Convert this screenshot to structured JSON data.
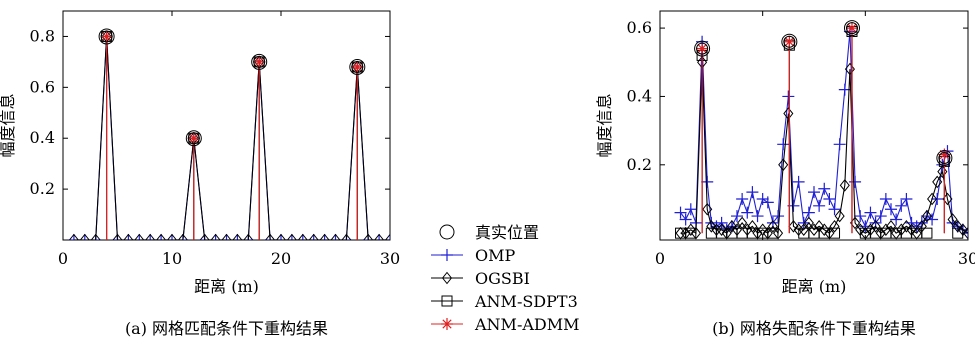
{
  "chart_data": [
    {
      "type": "line",
      "subplot": "a",
      "caption": "(a) 网格匹配条件下重构结果",
      "xlabel": "距离 (m)",
      "ylabel": "幅度信息",
      "xlim": [
        0,
        30
      ],
      "ylim": [
        0,
        0.9
      ],
      "xticks": [
        "0",
        "10",
        "20",
        "30"
      ],
      "yticks": [
        "0.2",
        "0.4",
        "0.6",
        "0.8"
      ],
      "grid": false,
      "true_positions": {
        "x": [
          4,
          12,
          18,
          27
        ],
        "y": [
          0.8,
          0.4,
          0.7,
          0.68
        ]
      },
      "series": [
        {
          "name": "OMP",
          "x": [
            1,
            2,
            3,
            4,
            5,
            6,
            7,
            8,
            9,
            10,
            11,
            12,
            13,
            14,
            15,
            16,
            17,
            18,
            19,
            20,
            21,
            22,
            23,
            24,
            25,
            26,
            27,
            28,
            29,
            30
          ],
          "values": [
            0,
            0,
            0,
            0.8,
            0,
            0,
            0,
            0,
            0,
            0,
            0,
            0.4,
            0,
            0,
            0,
            0,
            0,
            0.7,
            0,
            0,
            0,
            0,
            0,
            0,
            0,
            0,
            0.68,
            0,
            0,
            0
          ]
        },
        {
          "name": "OGSBI",
          "x": [
            1,
            2,
            3,
            4,
            5,
            6,
            7,
            8,
            9,
            10,
            11,
            12,
            13,
            14,
            15,
            16,
            17,
            18,
            19,
            20,
            21,
            22,
            23,
            24,
            25,
            26,
            27,
            28,
            29,
            30
          ],
          "values": [
            0,
            0,
            0,
            0.8,
            0,
            0,
            0,
            0,
            0,
            0,
            0,
            0.4,
            0,
            0,
            0,
            0,
            0,
            0.7,
            0,
            0,
            0,
            0,
            0,
            0,
            0,
            0,
            0.68,
            0,
            0,
            0
          ]
        },
        {
          "name": "ANM-SDPT3",
          "x": [
            4,
            12,
            18,
            27
          ],
          "values": [
            0.8,
            0.4,
            0.7,
            0.68
          ]
        },
        {
          "name": "ANM-ADMM",
          "x": [
            4,
            12,
            18,
            27
          ],
          "values": [
            0.8,
            0.4,
            0.7,
            0.68
          ]
        }
      ]
    },
    {
      "type": "line",
      "subplot": "b",
      "caption": "(b) 网格失配条件下重构结果",
      "xlabel": "距离 (m)",
      "ylabel": "幅度信息",
      "xlim": [
        0,
        30
      ],
      "ylim": [
        -0.02,
        0.65
      ],
      "xticks": [
        "0",
        "10",
        "20",
        "30"
      ],
      "yticks": [
        "0.2",
        "0.4",
        "0.6"
      ],
      "grid": false,
      "true_positions": {
        "x": [
          4.1,
          12.6,
          18.7,
          27.7
        ],
        "y": [
          0.54,
          0.56,
          0.6,
          0.22
        ]
      },
      "series": [
        {
          "name": "OMP",
          "x": [
            2,
            2.5,
            3,
            3.5,
            4.1,
            4.6,
            5,
            5.5,
            6,
            6.5,
            7,
            7.5,
            8,
            8.5,
            9,
            9.5,
            10,
            10.5,
            11,
            11.5,
            12,
            12.5,
            13,
            13.5,
            14,
            14.5,
            15,
            15.5,
            16,
            16.5,
            17,
            17.5,
            18,
            18.5,
            19,
            19.5,
            20,
            20.5,
            21,
            21.5,
            22,
            22.5,
            23,
            23.5,
            24,
            24.5,
            25,
            25.5,
            26,
            26.5,
            27,
            27.5,
            28,
            28.5,
            29,
            29.5,
            30
          ],
          "values": [
            0.06,
            0.04,
            0.07,
            0.03,
            0.56,
            0.15,
            0.03,
            0.02,
            0.03,
            0.01,
            0.02,
            0.05,
            0.1,
            0.06,
            0.12,
            0.05,
            0.1,
            0.09,
            0.03,
            0.05,
            0.26,
            0.4,
            0.08,
            0.15,
            0.03,
            0.06,
            0.12,
            0.08,
            0.13,
            0.1,
            0.07,
            0.26,
            0.42,
            0.59,
            0.15,
            0.05,
            0.02,
            0.06,
            0.03,
            0.05,
            0.1,
            0.07,
            0.04,
            0.08,
            0.1,
            0.03,
            0.02,
            0.03,
            0.05,
            0.04,
            0.1,
            0.2,
            0.24,
            0.03,
            0.02,
            0.01,
            0
          ]
        },
        {
          "name": "OGSBI",
          "x": [
            2,
            2.5,
            3,
            3.5,
            4.1,
            4.6,
            5,
            5.5,
            6,
            6.5,
            7,
            7.5,
            8,
            8.5,
            9,
            9.5,
            10,
            10.5,
            11,
            11.5,
            12,
            12.5,
            13,
            13.5,
            14,
            14.5,
            15,
            15.5,
            16,
            16.5,
            17,
            17.5,
            18,
            18.5,
            19,
            19.5,
            20,
            20.5,
            21,
            21.5,
            22,
            22.5,
            23,
            23.5,
            24,
            24.5,
            25,
            25.5,
            26,
            26.5,
            27,
            27.5,
            28,
            28.5,
            29,
            29.5,
            30
          ],
          "values": [
            0,
            0,
            0.01,
            0,
            0.5,
            0.07,
            0.02,
            0.01,
            0.01,
            0,
            0.02,
            0.01,
            0.03,
            0.01,
            0.02,
            0,
            0.01,
            0,
            0.02,
            0,
            0.2,
            0.35,
            0.02,
            0.01,
            0.01,
            0.03,
            0.01,
            0.02,
            0.01,
            0,
            0.02,
            0.05,
            0.14,
            0.48,
            0.03,
            0.01,
            0,
            0.01,
            0.02,
            0,
            0.01,
            0.02,
            0,
            0.01,
            0.02,
            0.01,
            0,
            0.02,
            0.05,
            0.1,
            0.15,
            0.18,
            0.1,
            0.04,
            0.02,
            0.01,
            0
          ]
        },
        {
          "name": "ANM-SDPT3",
          "x": [
            2,
            3,
            4.1,
            5,
            6,
            7,
            8,
            9,
            10,
            11,
            12.6,
            14,
            15,
            16,
            17,
            18.7,
            20,
            21,
            22,
            23,
            24,
            25,
            26,
            27.7,
            29
          ],
          "values": [
            0,
            0,
            0.52,
            0,
            0,
            0,
            0,
            0,
            0,
            0,
            0.55,
            0,
            0,
            0,
            0,
            0.59,
            0,
            0,
            0,
            0,
            0,
            0,
            0,
            0.21,
            0
          ]
        },
        {
          "name": "ANM-ADMM",
          "x": [
            4.1,
            12.6,
            18.7,
            27.7
          ],
          "values": [
            0.54,
            0.56,
            0.6,
            0.23
          ]
        }
      ]
    }
  ],
  "legend": {
    "placement": "center",
    "entries": [
      {
        "label": "真实位置",
        "marker": "circle",
        "color": "#000000"
      },
      {
        "label": "OMP",
        "marker": "plus",
        "color": "#1f1fd6"
      },
      {
        "label": "OGSBI",
        "marker": "diamond",
        "color": "#000000"
      },
      {
        "label": "ANM-SDPT3",
        "marker": "square",
        "color": "#000000"
      },
      {
        "label": "ANM-ADMM",
        "marker": "star",
        "color": "#e02020"
      }
    ]
  },
  "colors": {
    "omp": "#1f1fd6",
    "ogsbi": "#000000",
    "sdpt3": "#000000",
    "admm": "#e02020",
    "truth": "#000000"
  }
}
